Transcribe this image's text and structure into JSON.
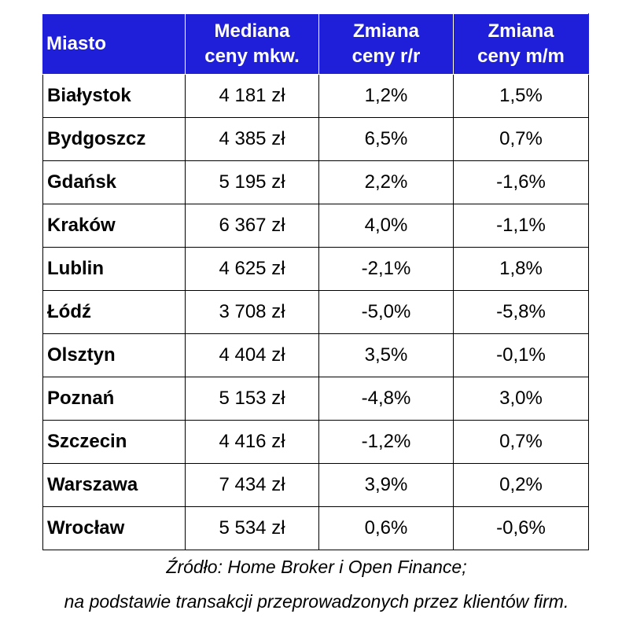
{
  "chart_data": {
    "type": "table",
    "columns": [
      {
        "lines": [
          "Miasto"
        ]
      },
      {
        "lines": [
          "Mediana",
          "ceny mkw."
        ]
      },
      {
        "lines": [
          "Zmiana",
          "ceny r/r"
        ]
      },
      {
        "lines": [
          "Zmiana",
          "ceny m/m"
        ]
      }
    ],
    "rows": [
      {
        "city": "Białystok",
        "median": "4 181 zł",
        "yoy": "1,2%",
        "mom": "1,5%"
      },
      {
        "city": "Bydgoszcz",
        "median": "4 385 zł",
        "yoy": "6,5%",
        "mom": "0,7%"
      },
      {
        "city": "Gdańsk",
        "median": "5 195 zł",
        "yoy": "2,2%",
        "mom": "-1,6%"
      },
      {
        "city": "Kraków",
        "median": "6 367 zł",
        "yoy": "4,0%",
        "mom": "-1,1%"
      },
      {
        "city": "Lublin",
        "median": "4 625 zł",
        "yoy": "-2,1%",
        "mom": "1,8%"
      },
      {
        "city": "Łódź",
        "median": "3 708 zł",
        "yoy": "-5,0%",
        "mom": "-5,8%"
      },
      {
        "city": "Olsztyn",
        "median": "4 404 zł",
        "yoy": "3,5%",
        "mom": "-0,1%"
      },
      {
        "city": "Poznań",
        "median": "5 153 zł",
        "yoy": "-4,8%",
        "mom": "3,0%"
      },
      {
        "city": "Szczecin",
        "median": "4 416 zł",
        "yoy": "-1,2%",
        "mom": "0,7%"
      },
      {
        "city": "Warszawa",
        "median": "7 434 zł",
        "yoy": "3,9%",
        "mom": "0,2%"
      },
      {
        "city": "Wrocław",
        "median": "5 534 zł",
        "yoy": "0,6%",
        "mom": "-0,6%"
      }
    ],
    "colors": {
      "header_background": "#1f1fd9",
      "header_text": "#ffffff",
      "grid": "#000000"
    }
  },
  "source": {
    "line1": "Źródło: Home Broker i Open Finance;",
    "line2": "na podstawie transakcji przeprowadzonych przez klientów firm."
  }
}
